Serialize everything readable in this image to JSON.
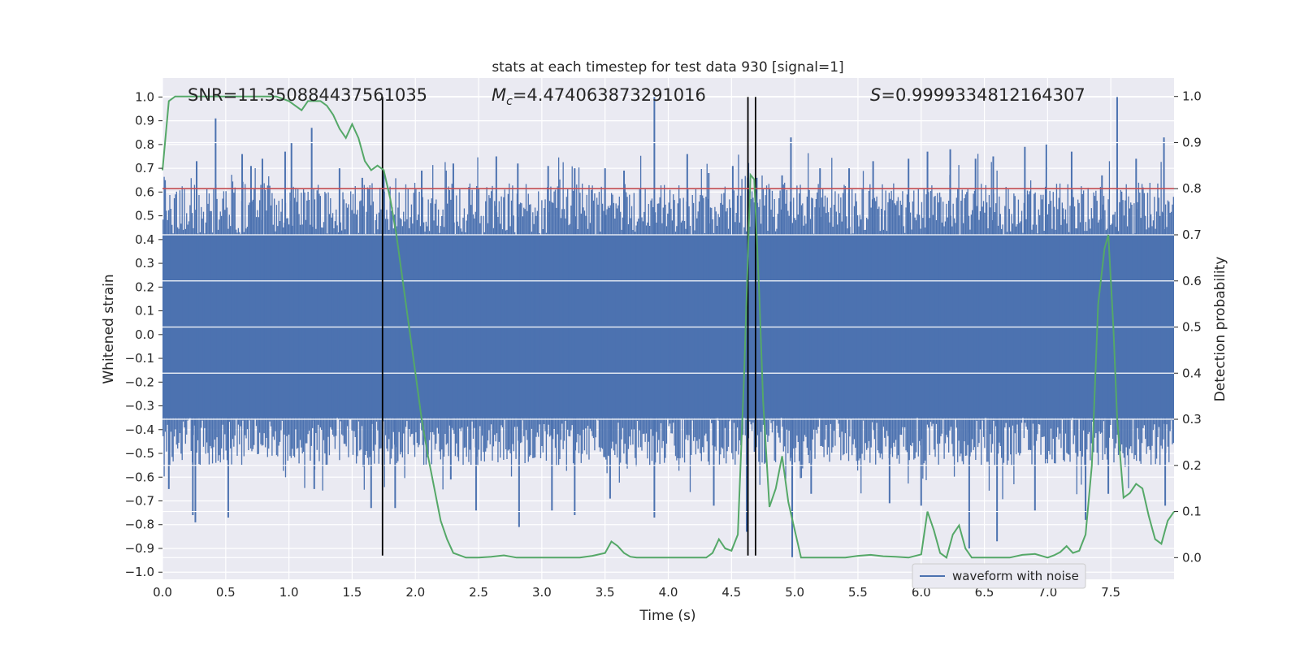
{
  "chart_data": {
    "type": "line",
    "title": "stats at each timestep for test data 930 [signal=1]",
    "xlabel": "Time (s)",
    "ylabel": "Whitened strain",
    "y2label": "Detection probability",
    "xlim": [
      0,
      8
    ],
    "ylim": [
      -1.03,
      1.08
    ],
    "y2lim": [
      -0.047,
      1.04
    ],
    "xticks": [
      "0.0",
      "0.5",
      "1.0",
      "1.5",
      "2.0",
      "2.5",
      "3.0",
      "3.5",
      "4.0",
      "4.5",
      "5.0",
      "5.5",
      "6.0",
      "6.5",
      "7.0",
      "7.5"
    ],
    "yticks": [
      "1.0",
      "0.9",
      "0.8",
      "0.7",
      "0.6",
      "0.5",
      "0.4",
      "0.3",
      "0.2",
      "0.1",
      "0.0",
      "-0.1",
      "-0.2",
      "-0.3",
      "-0.4",
      "-0.5",
      "-0.6",
      "-0.7",
      "-0.8",
      "-0.9",
      "-1.0"
    ],
    "y2ticks": [
      "1.0",
      "0.9",
      "0.8",
      "0.7",
      "0.6",
      "0.5",
      "0.4",
      "0.3",
      "0.2",
      "0.1",
      "0.0"
    ],
    "annotations": {
      "snr": "SNR=11.350884437561035",
      "mc_prefix": "M",
      "mc_sub": "c",
      "mc_value": "=4.474063873291016",
      "s_prefix": "S",
      "s_value": "=0.9999334812164307"
    },
    "threshold": {
      "value": 0.8,
      "axis": "y2",
      "color": "#c44e52"
    },
    "event_lines": {
      "x": [
        1.74,
        4.63,
        4.69
      ],
      "y_range": [
        -0.93,
        1.0
      ],
      "color": "#000000"
    },
    "series": [
      {
        "name": "waveform with noise",
        "color": "#4c72b0",
        "axis": "y",
        "dense_band": [
          -0.35,
          0.42
        ],
        "peaks_upper": [
          [
            0.02,
            0.65
          ],
          [
            0.42,
            0.91
          ],
          [
            0.27,
            0.73
          ],
          [
            0.63,
            0.76
          ],
          [
            0.7,
            0.71
          ],
          [
            0.79,
            0.74
          ],
          [
            0.97,
            0.77
          ],
          [
            1.02,
            0.81
          ],
          [
            1.18,
            0.87
          ],
          [
            1.4,
            0.7
          ],
          [
            1.58,
            0.66
          ],
          [
            1.75,
            0.69
          ],
          [
            2.05,
            0.69
          ],
          [
            2.3,
            0.72
          ],
          [
            2.64,
            0.75
          ],
          [
            2.81,
            0.72
          ],
          [
            3.05,
            0.71
          ],
          [
            3.26,
            0.7
          ],
          [
            3.5,
            0.7
          ],
          [
            3.65,
            0.69
          ],
          [
            3.89,
            1.0
          ],
          [
            4.15,
            0.76
          ],
          [
            4.32,
            0.68
          ],
          [
            4.51,
            0.71
          ],
          [
            4.7,
            0.66
          ],
          [
            4.9,
            0.67
          ],
          [
            4.97,
            0.83
          ],
          [
            5.2,
            0.7
          ],
          [
            5.43,
            0.7
          ],
          [
            5.62,
            0.73
          ],
          [
            5.9,
            0.74
          ],
          [
            6.05,
            0.77
          ],
          [
            6.23,
            0.78
          ],
          [
            6.43,
            0.74
          ],
          [
            6.57,
            0.75
          ],
          [
            6.82,
            0.79
          ],
          [
            6.99,
            0.8
          ],
          [
            7.19,
            0.77
          ],
          [
            7.43,
            0.67
          ],
          [
            7.55,
            1.0
          ],
          [
            7.7,
            0.74
          ],
          [
            7.92,
            0.83
          ]
        ],
        "peaks_lower": [
          [
            0.05,
            -0.65
          ],
          [
            0.24,
            -0.76
          ],
          [
            0.26,
            -0.79
          ],
          [
            0.52,
            -0.77
          ],
          [
            1.2,
            -0.65
          ],
          [
            1.65,
            -0.73
          ],
          [
            1.84,
            -0.73
          ],
          [
            2.28,
            -0.61
          ],
          [
            2.48,
            -0.74
          ],
          [
            2.82,
            -0.81
          ],
          [
            3.08,
            -0.74
          ],
          [
            3.26,
            -0.76
          ],
          [
            3.54,
            -0.69
          ],
          [
            3.89,
            -0.77
          ],
          [
            4.36,
            -0.72
          ],
          [
            4.62,
            -0.83
          ],
          [
            4.98,
            -0.94
          ],
          [
            5.13,
            -0.67
          ],
          [
            5.75,
            -0.71
          ],
          [
            6.0,
            -0.72
          ],
          [
            6.38,
            -0.9
          ],
          [
            6.6,
            -0.87
          ],
          [
            6.9,
            -0.74
          ],
          [
            7.3,
            -0.78
          ],
          [
            7.48,
            -0.67
          ],
          [
            7.93,
            -0.72
          ]
        ]
      },
      {
        "name": "",
        "color": "#55a868",
        "axis": "y2",
        "x": [
          0.0,
          0.05,
          0.1,
          0.2,
          0.3,
          0.5,
          0.7,
          0.9,
          1.0,
          1.05,
          1.1,
          1.15,
          1.2,
          1.25,
          1.3,
          1.35,
          1.4,
          1.45,
          1.5,
          1.55,
          1.6,
          1.65,
          1.7,
          1.75,
          1.8,
          1.85,
          1.9,
          1.95,
          2.0,
          2.05,
          2.1,
          2.15,
          2.2,
          2.25,
          2.3,
          2.4,
          2.5,
          2.6,
          2.7,
          2.8,
          2.9,
          3.0,
          3.1,
          3.2,
          3.3,
          3.4,
          3.5,
          3.55,
          3.6,
          3.65,
          3.7,
          3.75,
          3.8,
          3.9,
          4.0,
          4.1,
          4.2,
          4.3,
          4.35,
          4.4,
          4.45,
          4.5,
          4.55,
          4.6,
          4.65,
          4.68,
          4.72,
          4.75,
          4.8,
          4.85,
          4.9,
          4.95,
          5.0,
          5.05,
          5.1,
          5.2,
          5.3,
          5.4,
          5.5,
          5.6,
          5.7,
          5.8,
          5.9,
          6.0,
          6.05,
          6.1,
          6.15,
          6.2,
          6.25,
          6.3,
          6.35,
          6.4,
          6.45,
          6.5,
          6.6,
          6.7,
          6.8,
          6.9,
          7.0,
          7.05,
          7.1,
          7.15,
          7.2,
          7.25,
          7.3,
          7.35,
          7.4,
          7.45,
          7.48,
          7.52,
          7.55,
          7.6,
          7.65,
          7.7,
          7.75,
          7.8,
          7.85,
          7.9,
          7.95,
          8.0
        ],
        "y": [
          0.84,
          0.99,
          1.0,
          1.0,
          1.0,
          1.0,
          1.0,
          1.0,
          0.99,
          0.98,
          0.97,
          0.99,
          0.99,
          0.99,
          0.98,
          0.96,
          0.93,
          0.91,
          0.94,
          0.91,
          0.86,
          0.84,
          0.85,
          0.84,
          0.78,
          0.7,
          0.6,
          0.5,
          0.4,
          0.3,
          0.22,
          0.15,
          0.08,
          0.04,
          0.01,
          0.0,
          0.0,
          0.002,
          0.005,
          0.0,
          0.0,
          0.0,
          0.0,
          0.0,
          0.0,
          0.004,
          0.01,
          0.035,
          0.025,
          0.01,
          0.002,
          0.0,
          0.0,
          0.0,
          0.0,
          0.0,
          0.0,
          0.0,
          0.01,
          0.04,
          0.02,
          0.015,
          0.05,
          0.4,
          0.83,
          0.82,
          0.57,
          0.34,
          0.11,
          0.15,
          0.22,
          0.12,
          0.06,
          0.0,
          0.0,
          0.0,
          0.0,
          0.0,
          0.004,
          0.006,
          0.003,
          0.002,
          0.0,
          0.007,
          0.1,
          0.06,
          0.01,
          0.0,
          0.05,
          0.07,
          0.02,
          0.0,
          0.0,
          0.0,
          0.0,
          0.0,
          0.006,
          0.008,
          0.0,
          0.005,
          0.012,
          0.025,
          0.01,
          0.015,
          0.05,
          0.2,
          0.55,
          0.67,
          0.7,
          0.5,
          0.3,
          0.13,
          0.14,
          0.16,
          0.15,
          0.09,
          0.04,
          0.03,
          0.08,
          0.1
        ],
        "estimated": true
      }
    ],
    "legend": {
      "placement": "lower-right",
      "entries": [
        "waveform with noise"
      ]
    },
    "grid": true,
    "colors": {
      "background": "#eaeaf2",
      "grid": "#ffffff",
      "waveform": "#4c72b0",
      "probability": "#55a868",
      "threshold": "#c44e52"
    }
  }
}
